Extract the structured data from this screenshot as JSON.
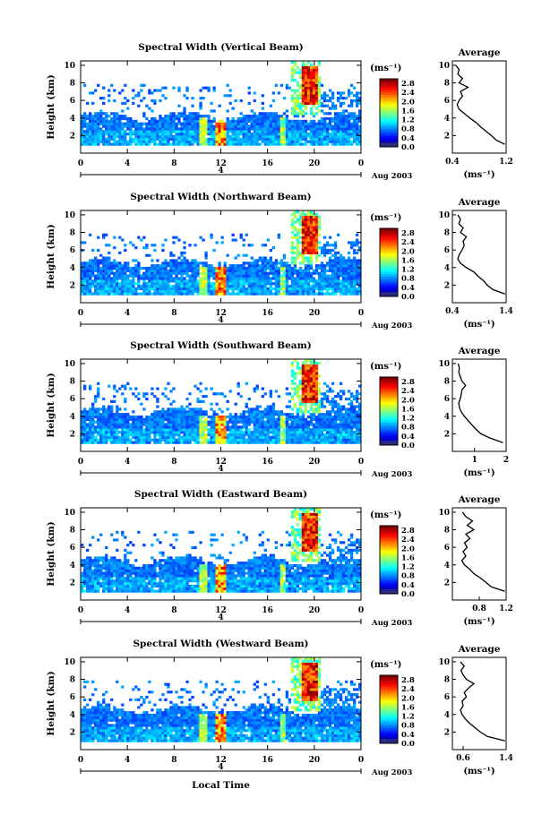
{
  "figure": {
    "xlabel_bottom": "Local Time",
    "date_label": "Aug 2003",
    "day_marker": "4"
  },
  "chart_data": [
    {
      "type": "heatmap",
      "title": "Spectral Width (Vertical Beam)",
      "ylabel": "Height (km)",
      "xlim": [
        0,
        24
      ],
      "ylim": [
        0,
        10.5
      ],
      "xticks": [
        "0",
        "4",
        "8",
        "12",
        "16",
        "20",
        "0"
      ],
      "yticks": [
        "2",
        "4",
        "6",
        "8",
        "10"
      ],
      "colorbar": {
        "unit": "(ms⁻¹)",
        "range": [
          0,
          3.0
        ],
        "ticks": [
          "0.0",
          "0.4",
          "0.8",
          "1.2",
          "1.6",
          "2.0",
          "2.4",
          "2.8"
        ]
      },
      "features": {
        "layer_top_km": 4.2,
        "cloud_start_h": 18.0,
        "cloud_end_h": 20.5,
        "cloud_peak_h": 19.6
      },
      "average_profile": {
        "title": "Average",
        "xlabel": "(ms⁻¹)",
        "xlim": [
          0.4,
          1.2
        ],
        "xticks": [
          "0.4",
          "1.2"
        ],
        "yticks": [
          "2",
          "4",
          "6",
          "8",
          "10"
        ],
        "height_km": [
          1.0,
          1.5,
          2.0,
          2.5,
          3.0,
          3.5,
          4.0,
          4.5,
          5.0,
          5.5,
          6.0,
          6.5,
          7.0,
          7.5,
          8.0,
          8.5,
          9.0,
          9.5,
          10.0
        ],
        "values": [
          1.18,
          1.05,
          0.98,
          0.9,
          0.82,
          0.75,
          0.66,
          0.58,
          0.5,
          0.47,
          0.5,
          0.55,
          0.52,
          0.63,
          0.5,
          0.55,
          0.48,
          0.5,
          0.45
        ]
      }
    },
    {
      "type": "heatmap",
      "title": "Spectral Width (Northward Beam)",
      "ylabel": "Height (km)",
      "xlim": [
        0,
        24
      ],
      "ylim": [
        0,
        10.5
      ],
      "xticks": [
        "0",
        "4",
        "8",
        "12",
        "16",
        "20",
        "0"
      ],
      "yticks": [
        "2",
        "4",
        "6",
        "8",
        "10"
      ],
      "colorbar": {
        "unit": "(ms⁻¹)",
        "range": [
          0,
          3.0
        ],
        "ticks": [
          "0.0",
          "0.4",
          "0.8",
          "1.2",
          "1.6",
          "2.0",
          "2.4",
          "2.8"
        ]
      },
      "features": {
        "layer_top_km": 4.6,
        "cloud_start_h": 18.0,
        "cloud_end_h": 20.5,
        "cloud_peak_h": 19.6
      },
      "average_profile": {
        "title": "Average",
        "xlabel": "(ms⁻¹)",
        "xlim": [
          0.4,
          1.4
        ],
        "xticks": [
          "0.4",
          "1.4"
        ],
        "yticks": [
          "2",
          "4",
          "6",
          "8",
          "10"
        ],
        "height_km": [
          1.0,
          1.5,
          2.0,
          2.5,
          3.0,
          3.5,
          4.0,
          4.5,
          5.0,
          5.5,
          6.0,
          6.5,
          7.0,
          7.5,
          8.0,
          8.5,
          9.0,
          9.5,
          10.0
        ],
        "values": [
          1.38,
          1.15,
          1.05,
          0.98,
          0.88,
          0.8,
          0.66,
          0.55,
          0.5,
          0.53,
          0.58,
          0.62,
          0.6,
          0.66,
          0.55,
          0.6,
          0.52,
          0.55,
          0.5
        ]
      }
    },
    {
      "type": "heatmap",
      "title": "Spectral Width (Southward Beam)",
      "ylabel": "Height (km)",
      "xlim": [
        0,
        24
      ],
      "ylim": [
        0,
        10.5
      ],
      "xticks": [
        "0",
        "4",
        "8",
        "12",
        "16",
        "20",
        "0"
      ],
      "yticks": [
        "2",
        "4",
        "6",
        "8",
        "10"
      ],
      "colorbar": {
        "unit": "(ms⁻¹)",
        "range": [
          0,
          3.0
        ],
        "ticks": [
          "0.0",
          "0.4",
          "0.8",
          "1.2",
          "1.6",
          "2.0",
          "2.4",
          "2.8"
        ]
      },
      "features": {
        "layer_top_km": 4.6,
        "cloud_start_h": 18.0,
        "cloud_end_h": 20.5,
        "cloud_peak_h": 19.6
      },
      "average_profile": {
        "title": "Average",
        "xlabel": "(ms⁻¹)",
        "xlim": [
          0.3,
          2.0
        ],
        "xticks": [
          "1",
          "2"
        ],
        "yticks": [
          "2",
          "4",
          "6",
          "8",
          "10"
        ],
        "height_km": [
          1.0,
          1.5,
          2.0,
          2.5,
          3.0,
          3.5,
          4.0,
          4.5,
          5.0,
          5.5,
          6.0,
          6.5,
          7.0,
          7.5,
          8.0,
          8.5,
          9.0,
          9.5,
          10.0
        ],
        "values": [
          1.9,
          1.5,
          1.2,
          1.05,
          0.92,
          0.8,
          0.68,
          0.58,
          0.52,
          0.5,
          0.55,
          0.58,
          0.6,
          0.72,
          0.6,
          0.55,
          0.5,
          0.52,
          0.48
        ]
      }
    },
    {
      "type": "heatmap",
      "title": "Spectral Width (Eastward Beam)",
      "ylabel": "Height (km)",
      "xlim": [
        0,
        24
      ],
      "ylim": [
        0,
        10.5
      ],
      "xticks": [
        "0",
        "4",
        "8",
        "12",
        "16",
        "20",
        "0"
      ],
      "yticks": [
        "2",
        "4",
        "6",
        "8",
        "10"
      ],
      "colorbar": {
        "unit": "(ms⁻¹)",
        "range": [
          0,
          3.0
        ],
        "ticks": [
          "0.0",
          "0.4",
          "0.8",
          "1.2",
          "1.6",
          "2.0",
          "2.4",
          "2.8"
        ]
      },
      "features": {
        "layer_top_km": 4.5,
        "cloud_start_h": 18.0,
        "cloud_end_h": 20.5,
        "cloud_peak_h": 19.6
      },
      "average_profile": {
        "title": "Average",
        "xlabel": "(ms⁻¹)",
        "xlim": [
          0.4,
          1.2
        ],
        "xticks": [
          "0.8",
          "1.2"
        ],
        "yticks": [
          "2",
          "4",
          "6",
          "8",
          "10"
        ],
        "height_km": [
          1.0,
          1.5,
          2.0,
          2.5,
          3.0,
          3.5,
          4.0,
          4.5,
          5.0,
          5.5,
          6.0,
          6.5,
          7.0,
          7.5,
          8.0,
          8.5,
          9.0,
          9.5,
          10.0
        ],
        "values": [
          1.18,
          0.98,
          0.9,
          0.82,
          0.72,
          0.66,
          0.58,
          0.54,
          0.6,
          0.56,
          0.62,
          0.58,
          0.66,
          0.6,
          0.72,
          0.62,
          0.7,
          0.6,
          0.55
        ]
      }
    },
    {
      "type": "heatmap",
      "title": "Spectral Width (Westward Beam)",
      "ylabel": "Height (km)",
      "xlim": [
        0,
        24
      ],
      "ylim": [
        0,
        10.5
      ],
      "xticks": [
        "0",
        "4",
        "8",
        "12",
        "16",
        "20",
        "0"
      ],
      "yticks": [
        "2",
        "4",
        "6",
        "8",
        "10"
      ],
      "colorbar": {
        "unit": "(ms⁻¹)",
        "range": [
          0,
          3.0
        ],
        "ticks": [
          "0.0",
          "0.4",
          "0.8",
          "1.2",
          "1.6",
          "2.0",
          "2.4",
          "2.8"
        ]
      },
      "features": {
        "layer_top_km": 4.6,
        "cloud_start_h": 18.0,
        "cloud_end_h": 20.5,
        "cloud_peak_h": 19.6
      },
      "average_profile": {
        "title": "Average",
        "xlabel": "(ms⁻¹)",
        "xlim": [
          0.4,
          1.4
        ],
        "xticks": [
          "0.6",
          "1.4"
        ],
        "yticks": [
          "2",
          "4",
          "6",
          "8",
          "10"
        ],
        "height_km": [
          1.0,
          1.5,
          2.0,
          2.5,
          3.0,
          3.5,
          4.0,
          4.5,
          5.0,
          5.5,
          6.0,
          6.5,
          7.0,
          7.5,
          8.0,
          8.5,
          9.0,
          9.5,
          10.0
        ],
        "values": [
          1.38,
          1.05,
          0.92,
          0.82,
          0.72,
          0.64,
          0.58,
          0.55,
          0.6,
          0.58,
          0.66,
          0.62,
          0.7,
          0.8,
          0.66,
          0.6,
          0.56,
          0.62,
          0.55
        ]
      }
    }
  ]
}
